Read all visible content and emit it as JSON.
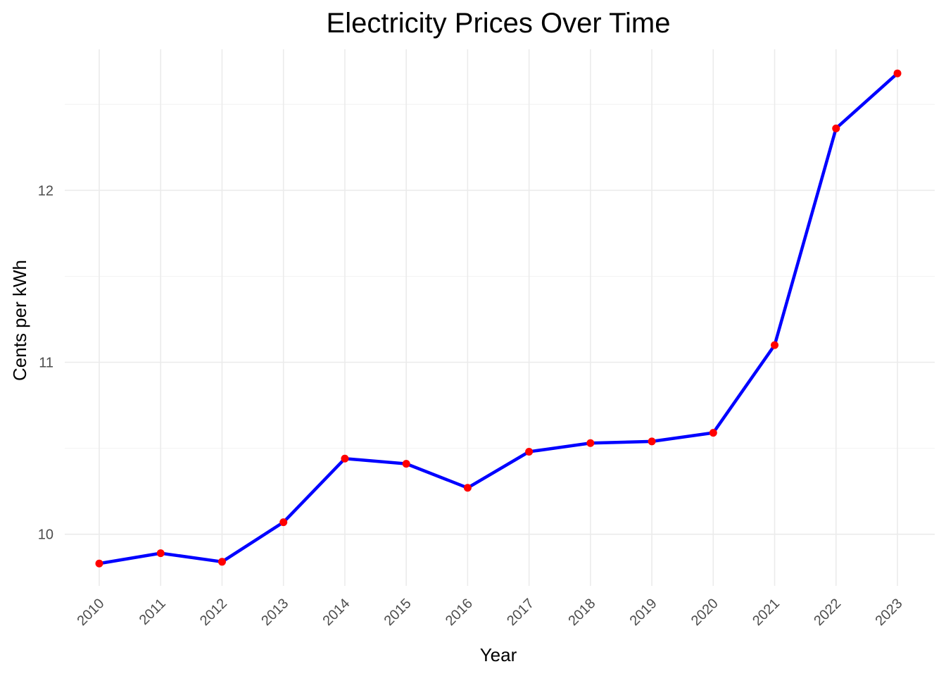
{
  "chart_data": {
    "type": "line",
    "title": "Electricity Prices Over Time",
    "xlabel": "Year",
    "ylabel": "Cents per kWh",
    "x": [
      "2010",
      "2011",
      "2012",
      "2013",
      "2014",
      "2015",
      "2016",
      "2017",
      "2018",
      "2019",
      "2020",
      "2021",
      "2022",
      "2023"
    ],
    "series": [
      {
        "values": [
          9.83,
          9.89,
          9.84,
          10.07,
          10.44,
          10.41,
          10.27,
          10.48,
          10.53,
          10.54,
          10.59,
          11.1,
          12.36,
          12.68
        ],
        "line_color": "#0000ff",
        "point_color": "#ff0000"
      }
    ],
    "ylim": [
      9.7,
      12.82
    ],
    "y_ticks": [
      10,
      11,
      12
    ],
    "y_tick_labels": [
      "10",
      "11",
      "12"
    ],
    "grid": true,
    "legend": "none",
    "x_tick_rotation_deg": 45
  }
}
